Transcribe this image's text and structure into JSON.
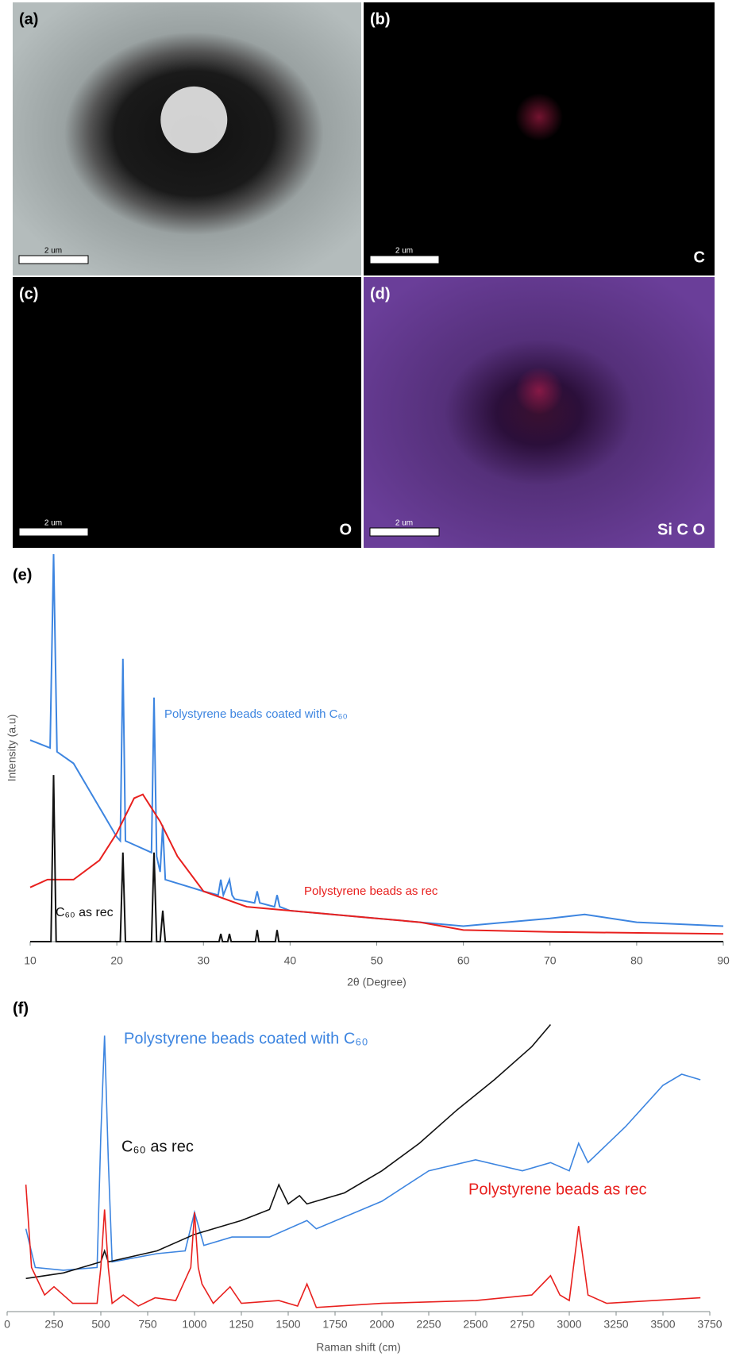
{
  "panels": [
    {
      "label": "(a)",
      "scale_bar": "2 um"
    },
    {
      "label": "(b)",
      "scale_bar": "2 um",
      "element": "C"
    },
    {
      "label": "(c)",
      "scale_bar": "2 um",
      "element": "O"
    },
    {
      "label": "(d)",
      "scale_bar": "2 um",
      "element": "Si C O"
    }
  ],
  "chart_data": [
    {
      "type": "line",
      "panel_label": "(e)",
      "xlabel": "2θ (Degree)",
      "ylabel": "Intensity (a.u)",
      "xlim": [
        10,
        90
      ],
      "xticks": [
        10,
        20,
        30,
        40,
        50,
        60,
        70,
        80,
        90
      ],
      "ylim": [
        0,
        100
      ],
      "series": [
        {
          "name": "Polystyrene beads coated with C₆₀",
          "color": "#3d85e0",
          "x": [
            10,
            12.3,
            12.7,
            13.1,
            15,
            20,
            20.4,
            20.7,
            21,
            22,
            24,
            24.3,
            24.6,
            25,
            25.3,
            25.6,
            30,
            31.7,
            32,
            32.3,
            33,
            33.3,
            33.6,
            35.9,
            36.2,
            36.5,
            38.2,
            38.5,
            38.8,
            40,
            50,
            60,
            70,
            74,
            80,
            90
          ],
          "values": [
            52,
            50,
            100,
            49,
            46,
            27,
            26,
            73,
            26,
            25,
            23,
            63,
            22,
            18,
            30,
            16,
            13,
            12,
            16,
            12,
            16,
            12,
            11,
            10,
            13,
            10,
            9,
            12,
            9,
            8,
            6,
            4,
            6,
            7,
            5,
            4
          ]
        },
        {
          "name": "Polystyrene beads as rec",
          "color": "#e8201e",
          "x": [
            10,
            12,
            15,
            18,
            20,
            22,
            23,
            25,
            27,
            30,
            35,
            40,
            50,
            55,
            60,
            70,
            90
          ],
          "values": [
            14,
            16,
            16,
            21,
            28,
            37,
            38,
            31,
            22,
            13,
            9,
            8,
            6,
            5,
            3,
            2.5,
            2
          ]
        },
        {
          "name": "C₆₀ as rec",
          "color": "#111111",
          "x": [
            10,
            12.4,
            12.7,
            13,
            20.4,
            20.7,
            21,
            24,
            24.3,
            24.6,
            25,
            25.3,
            25.6,
            31.8,
            32,
            32.2,
            32.8,
            33,
            33.2,
            36,
            36.2,
            36.4,
            38.3,
            38.5,
            38.7,
            90
          ],
          "values": [
            0,
            0,
            43,
            0,
            0,
            23,
            0,
            0,
            23,
            0,
            0,
            8,
            0,
            0,
            2,
            0,
            0,
            2,
            0,
            0,
            3,
            0,
            0,
            3,
            0,
            0
          ]
        }
      ]
    },
    {
      "type": "line",
      "panel_label": "(f)",
      "xlabel": "Raman shift (cm)",
      "xlim": [
        0,
        3750
      ],
      "xticks": [
        0,
        250,
        500,
        750,
        1000,
        1250,
        1500,
        1750,
        2000,
        2250,
        2500,
        2750,
        3000,
        3250,
        3500,
        3750
      ],
      "ylim": [
        0,
        105
      ],
      "series": [
        {
          "name": "Polystyrene beads coated with C₆₀",
          "color": "#3d85e0",
          "x": [
            100,
            150,
            300,
            480,
            500,
            520,
            540,
            560,
            800,
            950,
            1000,
            1050,
            1200,
            1400,
            1600,
            1650,
            2000,
            2250,
            2500,
            2750,
            2900,
            3000,
            3050,
            3100,
            3300,
            3500,
            3600,
            3700
          ],
          "values": [
            30,
            16,
            15,
            16,
            64,
            100,
            55,
            18,
            21,
            22,
            36,
            24,
            27,
            27,
            33,
            30,
            40,
            51,
            55,
            51,
            54,
            51,
            61,
            54,
            67,
            82,
            86,
            84
          ]
        },
        {
          "name": "C₆₀ as rec",
          "color": "#111111",
          "x": [
            100,
            300,
            500,
            520,
            540,
            800,
            1000,
            1250,
            1400,
            1450,
            1500,
            1560,
            1600,
            1800,
            2000,
            2200,
            2400,
            2600,
            2800,
            2900
          ],
          "values": [
            12,
            14,
            18,
            22,
            18,
            22,
            28,
            33,
            37,
            46,
            39,
            42,
            39,
            43,
            51,
            61,
            73,
            84,
            96,
            104
          ]
        },
        {
          "name": "Polystyrene beads as rec",
          "color": "#e8201e",
          "x": [
            100,
            130,
            200,
            250,
            350,
            480,
            500,
            520,
            540,
            560,
            620,
            700,
            790,
            900,
            980,
            1000,
            1020,
            1040,
            1100,
            1190,
            1250,
            1450,
            1550,
            1600,
            1650,
            2000,
            2500,
            2800,
            2900,
            2950,
            3000,
            3050,
            3100,
            3200,
            3700
          ],
          "values": [
            46,
            16,
            6,
            9,
            3,
            3,
            16,
            37,
            16,
            3,
            6,
            2,
            5,
            4,
            16,
            36,
            16,
            10,
            3,
            9,
            3,
            4,
            2,
            10,
            1.5,
            3,
            4,
            6,
            13,
            6,
            4,
            31,
            6,
            3,
            5
          ]
        }
      ]
    }
  ]
}
